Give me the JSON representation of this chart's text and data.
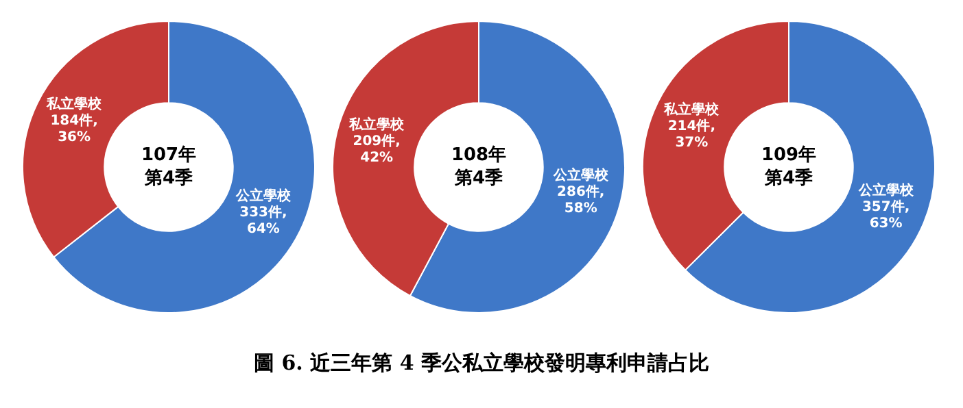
{
  "chart_data": [
    {
      "type": "donut",
      "title": "107年第4季",
      "categories": [
        "公立學校",
        "私立學校"
      ],
      "values": [
        333,
        184
      ],
      "colors": [
        "#3f78c8",
        "#c53a37"
      ],
      "value_labels": [
        "333件, 64%",
        "184件, 36%"
      ],
      "legend": false
    },
    {
      "type": "donut",
      "title": "108年第4季",
      "categories": [
        "公立學校",
        "私立學校"
      ],
      "values": [
        286,
        209
      ],
      "colors": [
        "#3f78c8",
        "#c53a37"
      ],
      "value_labels": [
        "286件, 58%",
        "209件, 42%"
      ],
      "legend": false
    },
    {
      "type": "donut",
      "title": "109年第4季",
      "categories": [
        "公立學校",
        "私立學校"
      ],
      "values": [
        357,
        214
      ],
      "colors": [
        "#3f78c8",
        "#c53a37"
      ],
      "value_labels": [
        "357件, 63%",
        "214件, 37%"
      ],
      "legend": false,
      "annotations": [
        "圖 6. 近三年第 4 季公私立學校發明專利申請占比"
      ]
    }
  ]
}
